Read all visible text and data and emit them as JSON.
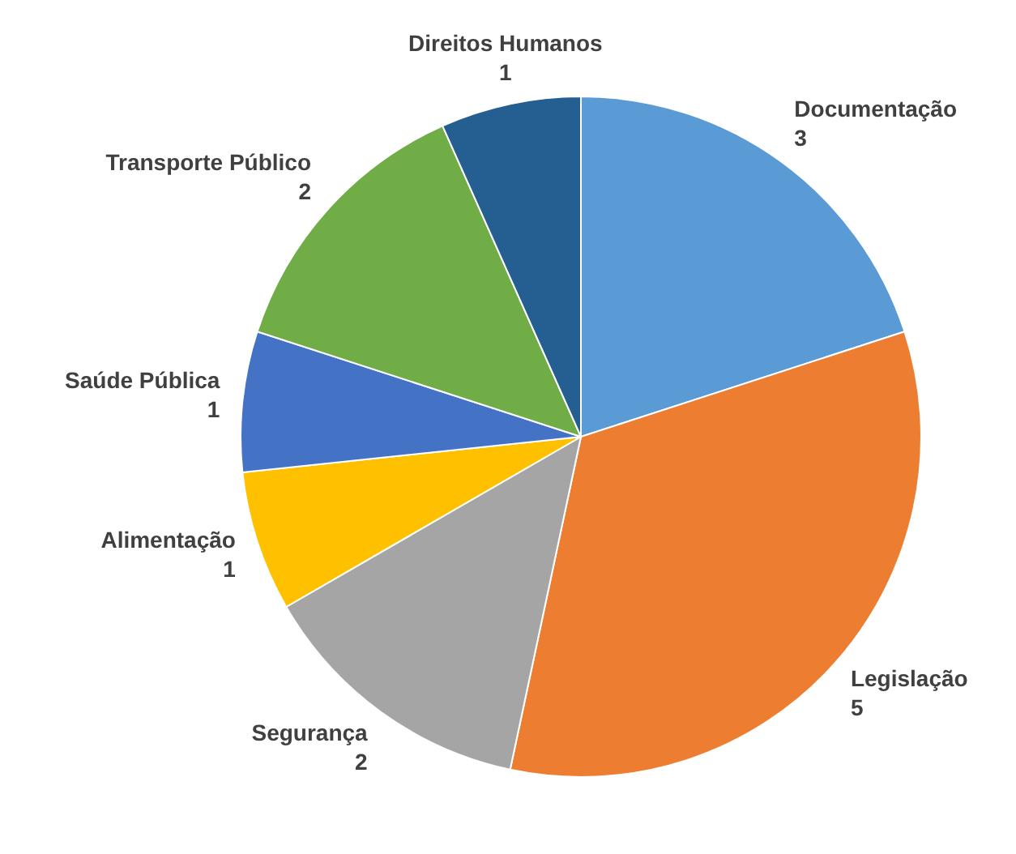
{
  "chart_data": {
    "type": "pie",
    "categories": [
      "Documentação",
      "Legislação",
      "Segurança",
      "Alimentação",
      "Saúde Pública",
      "Transporte Público",
      "Direitos Humanos"
    ],
    "values": [
      3,
      5,
      2,
      1,
      1,
      2,
      1
    ],
    "colors": [
      "#5b9bd5",
      "#ed7d31",
      "#a5a5a5",
      "#ffc000",
      "#4472c4",
      "#70ad47",
      "#255e91"
    ],
    "data_labels": true,
    "legend": false
  }
}
